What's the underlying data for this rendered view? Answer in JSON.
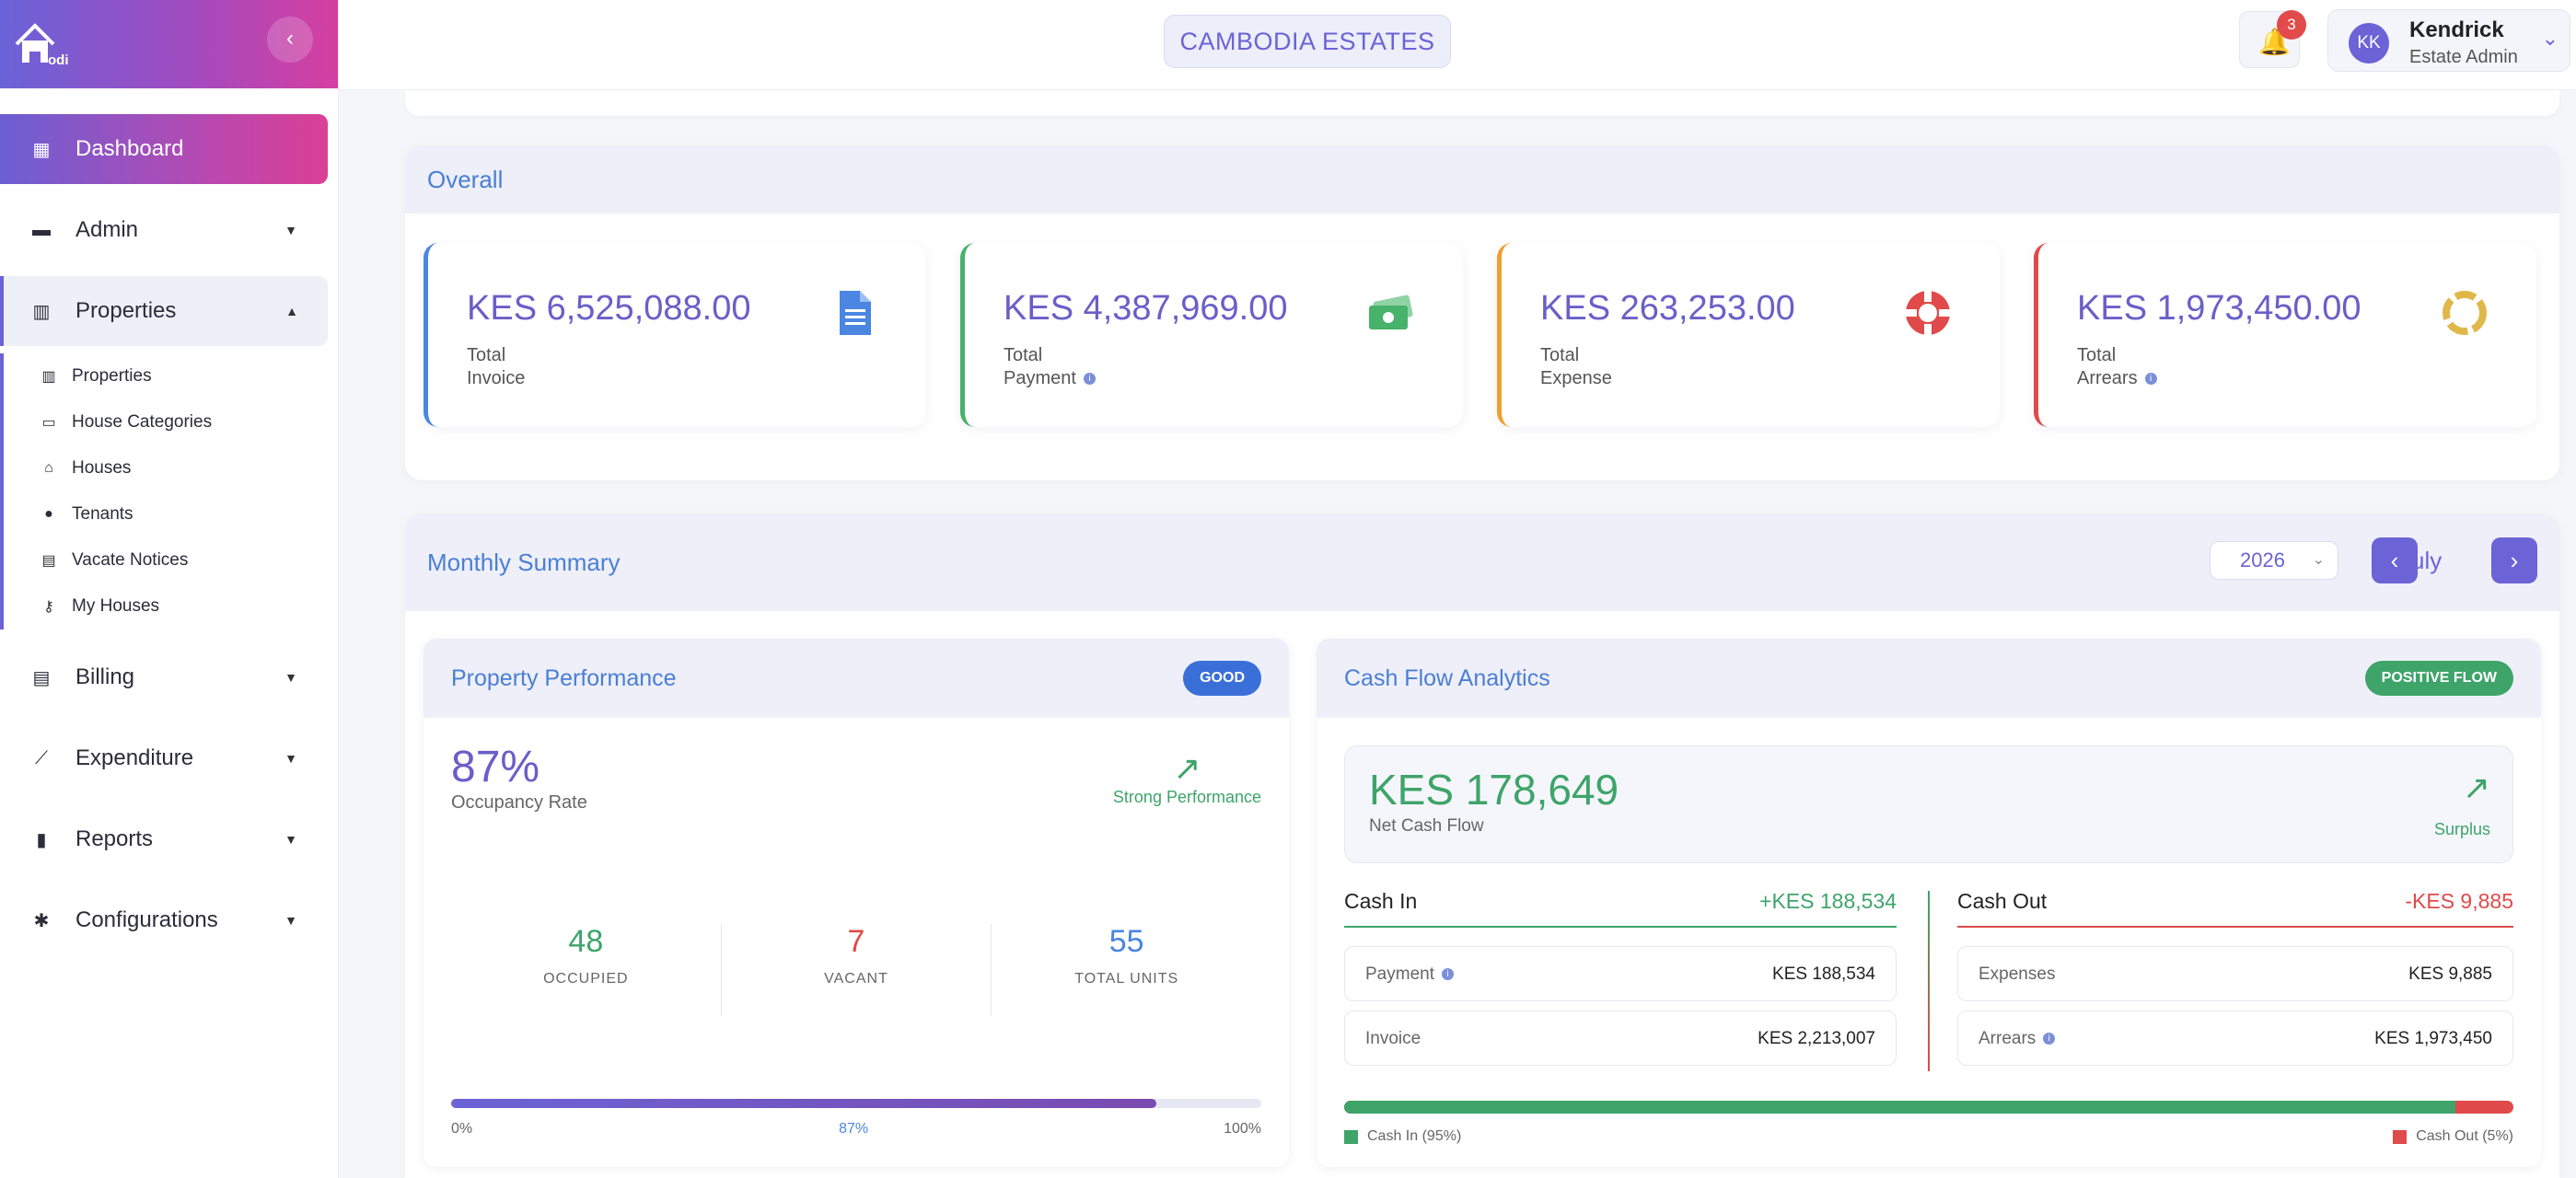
{
  "sidebar": {
    "logo_text": "odi",
    "collapse_glyph": "‹",
    "items": [
      {
        "label": "Dashboard",
        "icon": "grid-icon",
        "glyph": "▦"
      },
      {
        "label": "Admin",
        "icon": "user-icon",
        "glyph": "▬"
      },
      {
        "label": "Properties",
        "icon": "building-icon",
        "glyph": "▥"
      },
      {
        "label": "Billing",
        "icon": "document-icon",
        "glyph": "▤"
      },
      {
        "label": "Expenditure",
        "icon": "line-chart-icon",
        "glyph": "⟋"
      },
      {
        "label": "Reports",
        "icon": "bar-chart-icon",
        "glyph": "▮"
      },
      {
        "label": "Configurations",
        "icon": "gear-icon",
        "glyph": "✱"
      }
    ],
    "properties_sub": [
      {
        "label": "Properties",
        "glyph": "▥"
      },
      {
        "label": "House Categories",
        "glyph": "▭"
      },
      {
        "label": "Houses",
        "glyph": "⌂"
      },
      {
        "label": "Tenants",
        "glyph": "●"
      },
      {
        "label": "Vacate Notices",
        "glyph": "▤"
      },
      {
        "label": "My Houses",
        "glyph": "⚷"
      }
    ]
  },
  "topbar": {
    "estate_name": "CAMBODIA ESTATES",
    "notification_count": "3",
    "user": {
      "initials": "KK",
      "name": "Kendrick",
      "role": "Estate Admin"
    }
  },
  "overall": {
    "title": "Overall",
    "cards": [
      {
        "value": "KES 6,525,088.00",
        "label1": "Total",
        "label2": "Invoice",
        "icon": "invoice-document-icon",
        "color": "#4a86e2"
      },
      {
        "value": "KES 4,387,969.00",
        "label1": "Total",
        "label2": "Payment",
        "icon": "money-icon",
        "color": "#46b26a"
      },
      {
        "value": "KES 263,253.00",
        "label1": "Total",
        "label2": "Expense",
        "icon": "lifebuoy-icon",
        "color": "#e04a4a"
      },
      {
        "value": "KES 1,973,450.00",
        "label1": "Total",
        "label2": "Arrears",
        "icon": "spinner-icon",
        "color": "#e0b84a"
      }
    ]
  },
  "monthly": {
    "title": "Monthly Summary",
    "year": "2026",
    "month": "July",
    "prev_glyph": "‹",
    "next_glyph": "›"
  },
  "property_performance": {
    "title": "Property Performance",
    "badge": "GOOD",
    "rate": "87%",
    "rate_label": "Occupancy Rate",
    "trend_label": "Strong Performance",
    "occupied": "48",
    "occupied_label": "OCCUPIED",
    "vacant": "7",
    "vacant_label": "VACANT",
    "total": "55",
    "total_label": "TOTAL UNITS",
    "progress_fraction": 0.87,
    "progress_min": "0%",
    "progress_mid": "87%",
    "progress_max": "100%"
  },
  "cash_flow": {
    "title": "Cash Flow Analytics",
    "badge": "POSITIVE FLOW",
    "net_value": "KES 178,649",
    "net_label": "Net Cash Flow",
    "trend_label": "Surplus",
    "cash_in_title": "Cash In",
    "cash_in_total": "+KES 188,534",
    "cash_out_title": "Cash Out",
    "cash_out_total": "-KES 9,885",
    "in_rows": [
      {
        "label": "Payment",
        "value": "KES 188,534"
      },
      {
        "label": "Invoice",
        "value": "KES 2,213,007"
      }
    ],
    "out_rows": [
      {
        "label": "Expenses",
        "value": "KES 9,885"
      },
      {
        "label": "Arrears",
        "value": "KES 1,973,450"
      }
    ],
    "in_fraction": 0.95,
    "legend_in": "Cash In (95%)",
    "legend_out": "Cash Out (5%)"
  }
}
